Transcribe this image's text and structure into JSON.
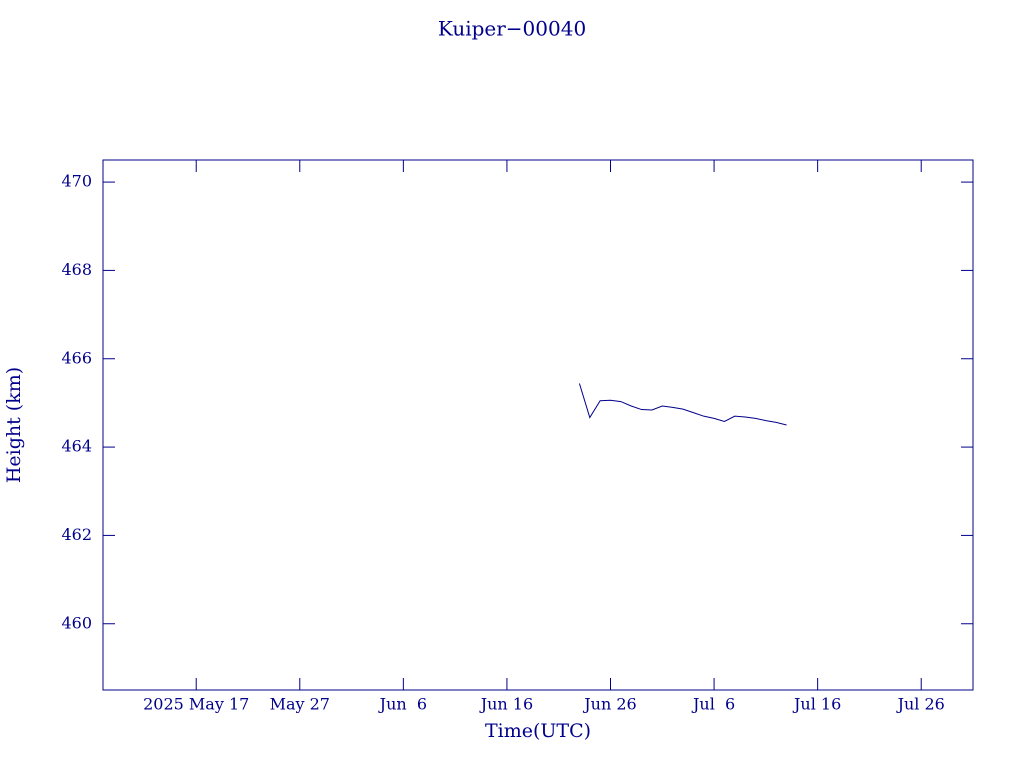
{
  "chart_data": {
    "type": "line",
    "title": "Kuiper−00040",
    "x_label": "Time(UTC)",
    "y_label": "Height (km)",
    "xlim": [
      "2025-05-08",
      "2025-07-31"
    ],
    "xticks": [
      {
        "value": "2025-05-17",
        "label": "2025 May 17"
      },
      {
        "value": "2025-05-27",
        "label": "May 27"
      },
      {
        "value": "2025-06-06",
        "label": "Jun  6"
      },
      {
        "value": "2025-06-16",
        "label": "Jun 16"
      },
      {
        "value": "2025-06-26",
        "label": "Jun 26"
      },
      {
        "value": "2025-07-06",
        "label": "Jul  6"
      },
      {
        "value": "2025-07-16",
        "label": "Jul 16"
      },
      {
        "value": "2025-07-26",
        "label": "Jul 26"
      }
    ],
    "ylim": [
      458.5,
      470.5
    ],
    "yticks": [
      460,
      462,
      464,
      466,
      468,
      470
    ],
    "color": "#00008b",
    "x": [
      "2025-06-23",
      "2025-06-24",
      "2025-06-25",
      "2025-06-26",
      "2025-06-27",
      "2025-06-28",
      "2025-06-29",
      "2025-06-30",
      "2025-07-01",
      "2025-07-02",
      "2025-07-03",
      "2025-07-04",
      "2025-07-05",
      "2025-07-06",
      "2025-07-07",
      "2025-07-08",
      "2025-07-09",
      "2025-07-10",
      "2025-07-11",
      "2025-07-12",
      "2025-07-13"
    ],
    "values": [
      465.44,
      464.67,
      465.05,
      465.06,
      465.03,
      464.93,
      464.85,
      464.84,
      464.93,
      464.9,
      464.86,
      464.78,
      464.7,
      464.65,
      464.58,
      464.7,
      464.68,
      464.65,
      464.6,
      464.56,
      464.5
    ]
  }
}
